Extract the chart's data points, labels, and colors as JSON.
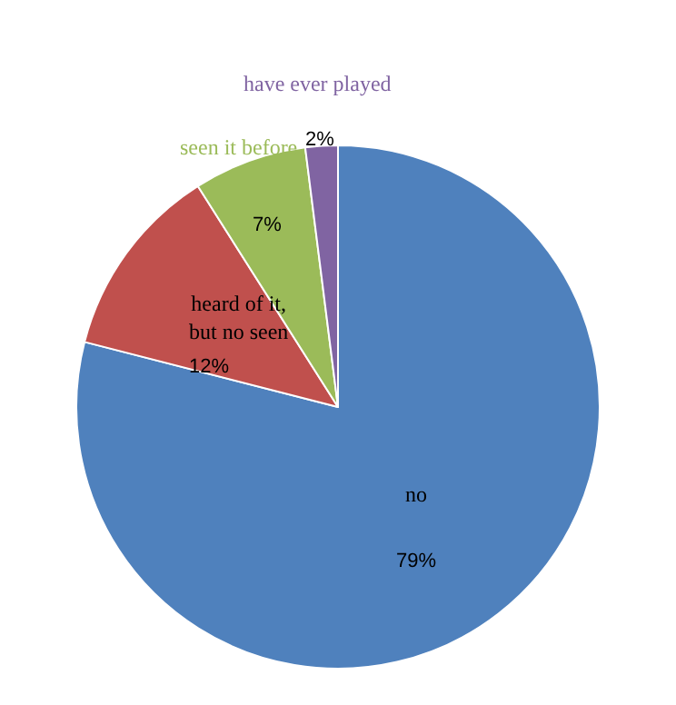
{
  "chart_data": {
    "type": "pie",
    "categories": [
      "no",
      "heard of it,\nbut no seen",
      "seen it before",
      "have ever played"
    ],
    "values": [
      79,
      12,
      7,
      2
    ],
    "value_labels": [
      "79%",
      "12%",
      "7%",
      "2%"
    ],
    "colors": [
      "#4f81bd",
      "#c0504d",
      "#9bbb59",
      "#8064a2"
    ],
    "legend": false
  }
}
